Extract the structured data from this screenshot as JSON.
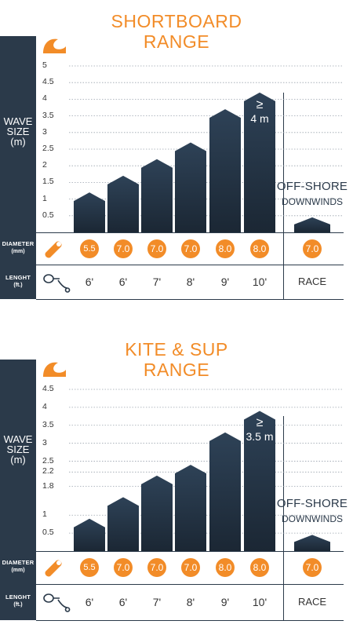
{
  "colors": {
    "accent": "#f28c28",
    "navy": "#2b3a4a",
    "bar_top": "#2e4257",
    "bar_bottom": "#1b2734"
  },
  "icons": {
    "wave": "wave-icon",
    "diameter": "leash-cord-icon",
    "length": "leash-icon"
  },
  "labels": {
    "wave": "WAVE",
    "size": "SIZE",
    "unit": "(m)",
    "diameter": "DIAMETER",
    "diameter_unit": "(mm)",
    "length": "LENGHT",
    "length_unit": "(ft.)",
    "offshore_1": "OFF-SHORE",
    "offshore_2": "DOWNWINDS",
    "race": "RACE"
  },
  "chart_data": [
    {
      "type": "bar",
      "title": "SHORTBOARD RANGE",
      "title_lines": [
        "SHORTBOARD",
        "RANGE"
      ],
      "ylabel": "WAVE SIZE (m)",
      "ylim": [
        0,
        5
      ],
      "ticks": [
        "5",
        "4.5",
        "4",
        "3.5",
        "3",
        "2.5",
        "2",
        "1.5",
        "1",
        "0.5"
      ],
      "tick_values": [
        5,
        4.5,
        4,
        3.5,
        3,
        2.5,
        2,
        1.5,
        1,
        0.5
      ],
      "grid": true,
      "categories": [
        "6'",
        "6'",
        "7'",
        "8'",
        "9'",
        "10'"
      ],
      "values": [
        1.2,
        1.7,
        2.2,
        2.7,
        3.7,
        4.2
      ],
      "diameters": [
        "5.5",
        "7.0",
        "7.0",
        "7.0",
        "8.0",
        "8.0"
      ],
      "annotation_symbol": "≥",
      "annotation_value": "4 m",
      "extra": {
        "category": "RACE",
        "diameter": "7.0",
        "value": 0.45
      }
    },
    {
      "type": "bar",
      "title": "KITE & SUP RANGE",
      "title_lines": [
        "KITE & SUP",
        "RANGE"
      ],
      "ylabel": "WAVE SIZE (m)",
      "ylim": [
        0,
        4.5
      ],
      "ticks": [
        "4.5",
        "4",
        "3.5",
        "3",
        "2.5",
        "2.2",
        "1.8",
        "1",
        "0.5"
      ],
      "tick_values": [
        4.5,
        4,
        3.5,
        3,
        2.5,
        2.2,
        1.8,
        1,
        0.5
      ],
      "grid": true,
      "categories": [
        "6'",
        "6'",
        "7'",
        "8'",
        "9'",
        "10'"
      ],
      "values": [
        0.9,
        1.5,
        2.1,
        2.4,
        3.3,
        3.9
      ],
      "diameters": [
        "5.5",
        "7.0",
        "7.0",
        "7.0",
        "8.0",
        "8.0"
      ],
      "annotation_symbol": "≥",
      "annotation_value": "3.5 m",
      "extra": {
        "category": "RACE",
        "diameter": "7.0",
        "value": 0.45
      }
    }
  ]
}
